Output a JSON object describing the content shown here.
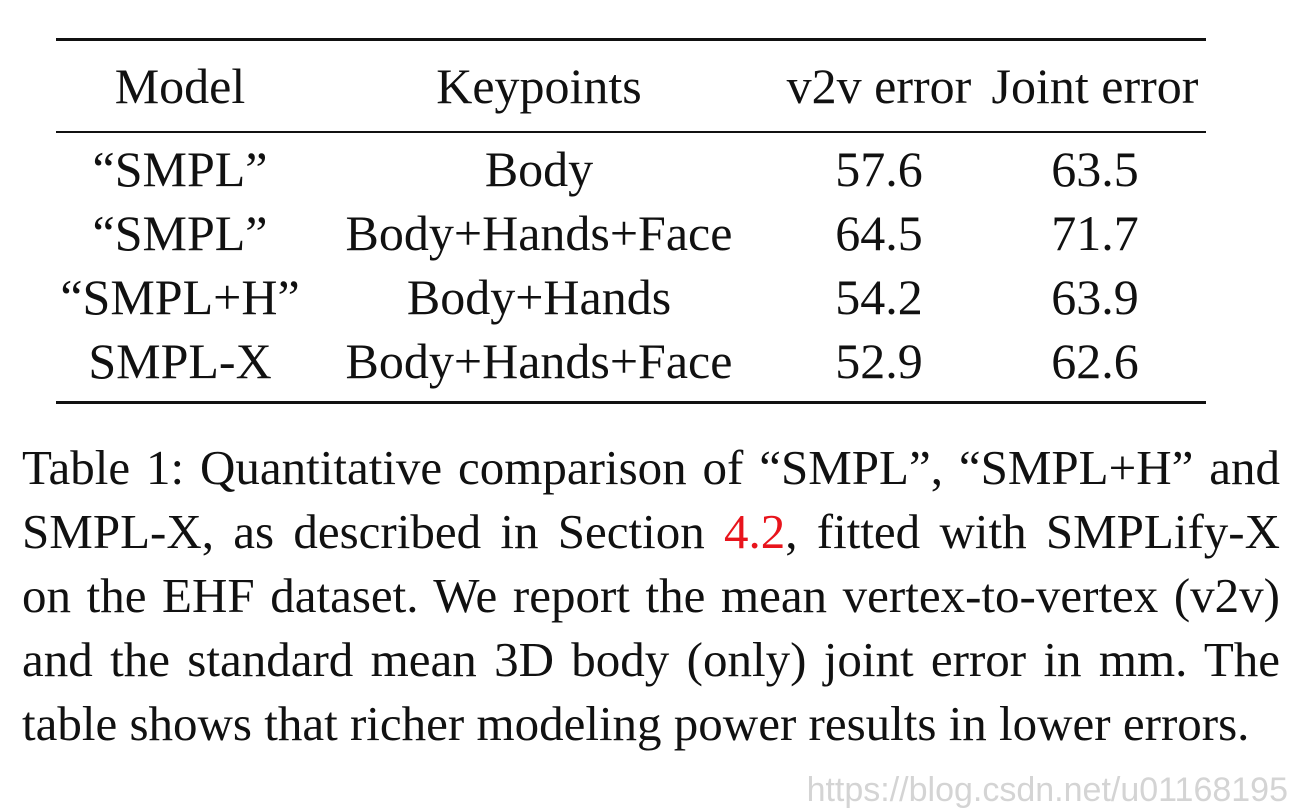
{
  "table": {
    "headers": [
      "Model",
      "Keypoints",
      "v2v error",
      "Joint error"
    ],
    "rows": [
      [
        "“SMPL”",
        "Body",
        "57.6",
        "63.5"
      ],
      [
        "“SMPL”",
        "Body+Hands+Face",
        "64.5",
        "71.7"
      ],
      [
        "“SMPL+H”",
        "Body+Hands",
        "54.2",
        "63.9"
      ],
      [
        "SMPL-X",
        "Body+Hands+Face",
        "52.9",
        "62.6"
      ]
    ]
  },
  "caption": {
    "part1": "Table 1: Quantitative comparison of “SMPL”, “SMPL+H” and SMPL-X, as described in Section ",
    "ref": "4.2",
    "part2": ", fitted with SMPLify-X on the EHF dataset. We report the mean vertex-to-vertex (v2v) and the standard mean 3D body (only) joint error in mm. The table shows that richer modeling power results in lower errors.",
    "ref_color": "#e8141c"
  },
  "watermark": "https://blog.csdn.net/u01168195"
}
